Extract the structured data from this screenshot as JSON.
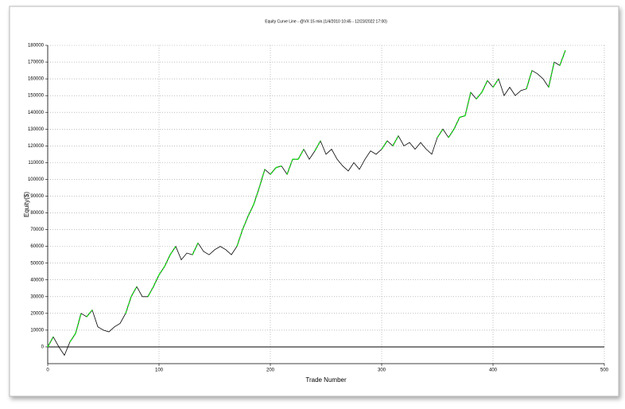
{
  "chart_data": {
    "type": "line",
    "title": "Equity Curve Line - @VX 15 min.(1/4/2010 10:45 - 12/23/2022 17:00)",
    "x_label": "Trade Number",
    "y_label": "Equity($)",
    "x": [
      0,
      5,
      10,
      15,
      20,
      25,
      30,
      35,
      40,
      45,
      50,
      55,
      60,
      65,
      70,
      75,
      80,
      85,
      90,
      95,
      100,
      105,
      110,
      115,
      120,
      125,
      130,
      135,
      140,
      145,
      150,
      155,
      160,
      165,
      170,
      175,
      180,
      185,
      190,
      195,
      200,
      205,
      210,
      215,
      220,
      225,
      230,
      235,
      240,
      245,
      250,
      255,
      260,
      265,
      270,
      275,
      280,
      285,
      290,
      295,
      300,
      305,
      310,
      315,
      320,
      325,
      330,
      335,
      340,
      345,
      350,
      355,
      360,
      365,
      370,
      375,
      380,
      385,
      390,
      395,
      400,
      405,
      410,
      415,
      420,
      425,
      430,
      435,
      440,
      445,
      450,
      455,
      460,
      465
    ],
    "values": [
      0,
      6000,
      0,
      -5000,
      3000,
      8000,
      20000,
      18000,
      22000,
      12000,
      10000,
      9000,
      12000,
      14000,
      20000,
      30000,
      36000,
      30000,
      30000,
      36000,
      43000,
      48000,
      55000,
      60000,
      52000,
      56000,
      55000,
      62000,
      57000,
      55000,
      58000,
      60000,
      58000,
      55000,
      60000,
      70000,
      78000,
      85000,
      95000,
      106000,
      103000,
      107000,
      108000,
      103000,
      112000,
      112000,
      118000,
      112000,
      117000,
      123000,
      115000,
      118000,
      112000,
      108000,
      105000,
      110000,
      106000,
      112000,
      117000,
      115000,
      118000,
      123000,
      120000,
      126000,
      120000,
      122000,
      118000,
      122000,
      118000,
      115000,
      125000,
      130000,
      125000,
      130000,
      137000,
      138000,
      152000,
      148000,
      152000,
      159000,
      155000,
      160000,
      150000,
      155000,
      150000,
      153000,
      154000,
      165000,
      163000,
      160000,
      155000,
      170000,
      168000,
      177000
    ],
    "color": "#000000",
    "high_color": "#22dd22",
    "xlim": [
      0,
      500
    ],
    "xticks": [
      0,
      100,
      200,
      300,
      400,
      500
    ],
    "ylim": [
      -10000,
      180000
    ],
    "yticks": [
      0,
      10000,
      20000,
      30000,
      40000,
      50000,
      60000,
      70000,
      80000,
      90000,
      100000,
      110000,
      120000,
      130000,
      140000,
      150000,
      160000,
      170000,
      180000
    ],
    "grid": true
  }
}
